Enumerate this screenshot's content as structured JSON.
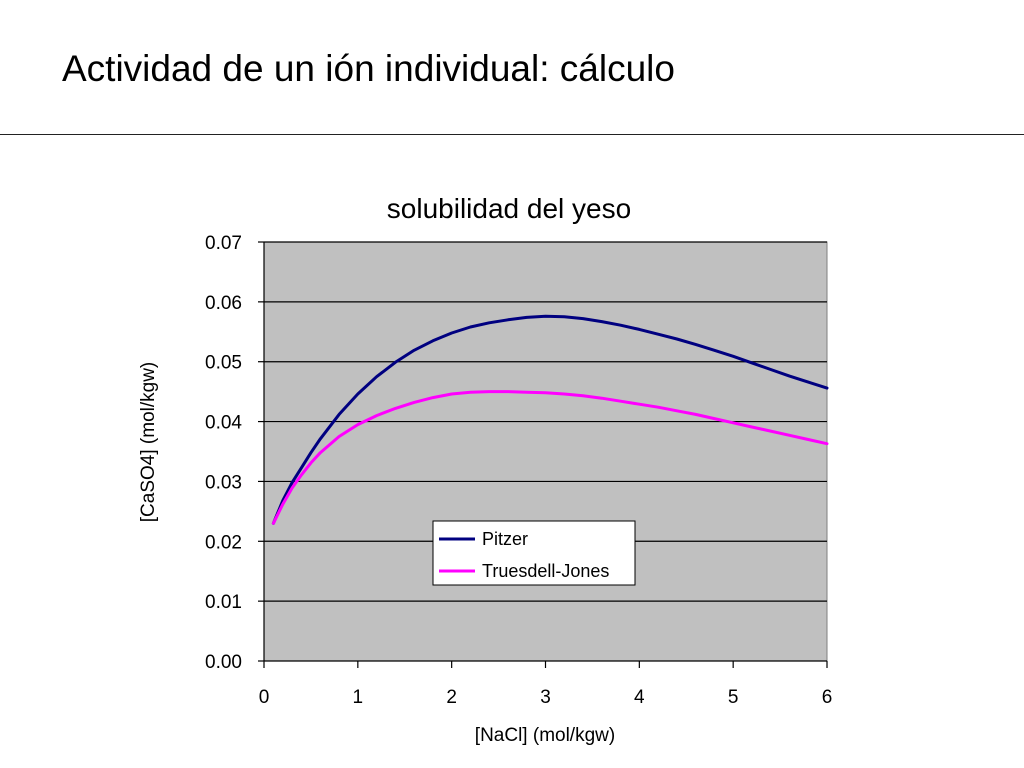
{
  "slide": {
    "title": "Actividad de un ión individual: cálculo"
  },
  "chart_data": {
    "type": "line",
    "title": "solubilidad del yeso",
    "xlabel": "[NaCl] (mol/kgw)",
    "ylabel": "[CaSO4]  (mol/kgw)",
    "xlim": [
      0,
      6
    ],
    "ylim": [
      0,
      0.07
    ],
    "x_ticks": [
      0,
      1,
      2,
      3,
      4,
      5,
      6
    ],
    "x_tick_labels": [
      "0",
      "1",
      "2",
      "3",
      "4",
      "5",
      "6"
    ],
    "y_ticks": [
      0,
      0.01,
      0.02,
      0.03,
      0.04,
      0.05,
      0.06,
      0.07
    ],
    "y_tick_labels": [
      "0.00",
      "0.01",
      "0.02",
      "0.03",
      "0.04",
      "0.05",
      "0.06",
      "0.07"
    ],
    "grid": "horizontal",
    "plot_background": "#c0c0c0",
    "legend_position": "bottom-center",
    "series": [
      {
        "name": "Pitzer",
        "color": "#000080",
        "x": [
          0.1,
          0.2,
          0.3,
          0.4,
          0.5,
          0.6,
          0.8,
          1.0,
          1.2,
          1.4,
          1.6,
          1.8,
          2.0,
          2.2,
          2.4,
          2.6,
          2.8,
          3.0,
          3.2,
          3.4,
          3.6,
          3.8,
          4.0,
          4.2,
          4.4,
          4.6,
          4.8,
          5.0,
          5.2,
          5.4,
          5.6,
          5.8,
          6.0
        ],
        "y": [
          0.023,
          0.0268,
          0.0298,
          0.0323,
          0.0348,
          0.0371,
          0.0412,
          0.0446,
          0.0475,
          0.0499,
          0.0519,
          0.0535,
          0.0548,
          0.0558,
          0.0565,
          0.057,
          0.0574,
          0.0576,
          0.0575,
          0.0572,
          0.0567,
          0.0561,
          0.0554,
          0.0546,
          0.0538,
          0.0529,
          0.0519,
          0.0509,
          0.0498,
          0.0487,
          0.0476,
          0.0466,
          0.0456
        ]
      },
      {
        "name": "Truesdell-Jones",
        "color": "#ff00ff",
        "x": [
          0.1,
          0.2,
          0.3,
          0.4,
          0.5,
          0.6,
          0.8,
          1.0,
          1.2,
          1.4,
          1.6,
          1.8,
          2.0,
          2.2,
          2.4,
          2.6,
          2.8,
          3.0,
          3.2,
          3.4,
          3.6,
          3.8,
          4.0,
          4.2,
          4.4,
          4.6,
          4.8,
          5.0,
          5.2,
          5.4,
          5.6,
          5.8,
          6.0
        ],
        "y": [
          0.023,
          0.0262,
          0.0289,
          0.0311,
          0.0331,
          0.0348,
          0.0375,
          0.0395,
          0.041,
          0.0422,
          0.0432,
          0.044,
          0.0446,
          0.0449,
          0.045,
          0.045,
          0.0449,
          0.0448,
          0.0446,
          0.0443,
          0.0439,
          0.0434,
          0.0429,
          0.0424,
          0.0418,
          0.0412,
          0.0405,
          0.0398,
          0.0391,
          0.0384,
          0.0377,
          0.037,
          0.0363
        ]
      }
    ]
  }
}
